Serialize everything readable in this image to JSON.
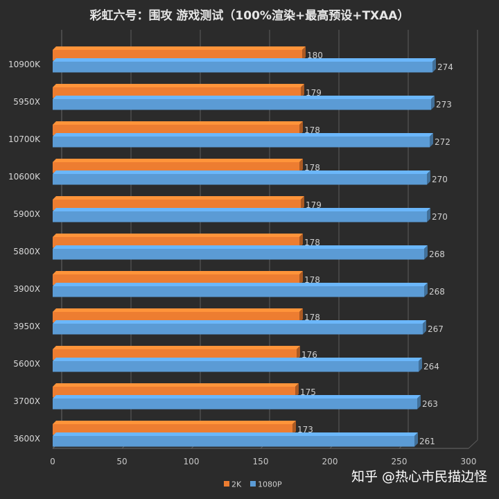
{
  "chart_data": {
    "type": "bar",
    "orientation": "horizontal",
    "title": "彩虹六号：围攻 游戏测试（100%渲染+最高预设+TXAA）",
    "categories": [
      "10900K",
      "5950X",
      "10700K",
      "10600K",
      "5900X",
      "5800X",
      "3900X",
      "3950X",
      "5600X",
      "3700X",
      "3600X"
    ],
    "series": [
      {
        "name": "2K",
        "color": "#ed7d31",
        "values": [
          180,
          179,
          178,
          178,
          179,
          178,
          178,
          178,
          176,
          175,
          173
        ]
      },
      {
        "name": "1080P",
        "color": "#5b9bd5",
        "values": [
          274,
          273,
          272,
          270,
          270,
          268,
          268,
          267,
          264,
          263,
          261
        ]
      }
    ],
    "xlim": [
      0,
      300
    ],
    "xticks": [
      0,
      50,
      100,
      150,
      200,
      250,
      300
    ],
    "grid": true,
    "legend_position": "bottom"
  },
  "watermark": "知乎 @热心市民描边怪"
}
